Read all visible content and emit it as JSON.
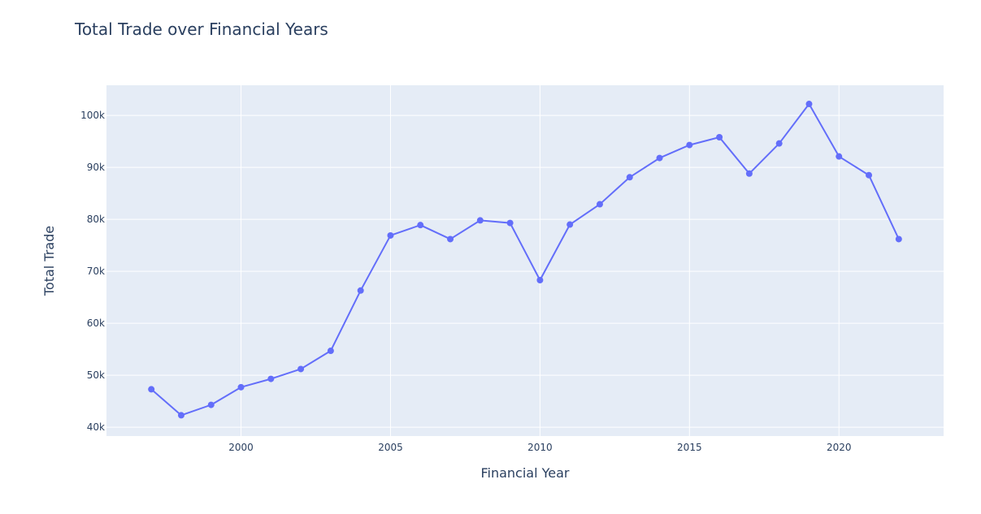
{
  "chart_data": {
    "type": "line",
    "title": "Total Trade over Financial Years",
    "xlabel": "Financial Year",
    "ylabel": "Total Trade",
    "xlim": [
      1995.5,
      2023.5
    ],
    "ylim": [
      38300,
      105800
    ],
    "x_ticks": [
      2000,
      2005,
      2010,
      2015,
      2020
    ],
    "x_tick_labels": [
      "2000",
      "2005",
      "2010",
      "2015",
      "2020"
    ],
    "y_ticks": [
      40000,
      50000,
      60000,
      70000,
      80000,
      90000,
      100000
    ],
    "y_tick_labels": [
      "40k",
      "50k",
      "60k",
      "70k",
      "80k",
      "90k",
      "100k"
    ],
    "grid": true,
    "legend": false,
    "x": [
      1997,
      1998,
      1999,
      2000,
      2001,
      2002,
      2003,
      2004,
      2005,
      2006,
      2007,
      2008,
      2009,
      2010,
      2011,
      2012,
      2013,
      2014,
      2015,
      2016,
      2017,
      2018,
      2019,
      2020,
      2021,
      2022
    ],
    "series": [
      {
        "values": [
          47300,
          42300,
          44300,
          47700,
          49300,
          51200,
          54700,
          66300,
          76900,
          78900,
          76200,
          79800,
          79300,
          68300,
          79000,
          82900,
          88100,
          91800,
          94300,
          95800,
          88800,
          94600,
          102200,
          92100,
          88500,
          76200
        ],
        "color": "#636efa"
      }
    ]
  },
  "colors": {
    "plot_background": "#e5ecf6",
    "grid": "#ffffff",
    "text": "#2a3f5f"
  }
}
